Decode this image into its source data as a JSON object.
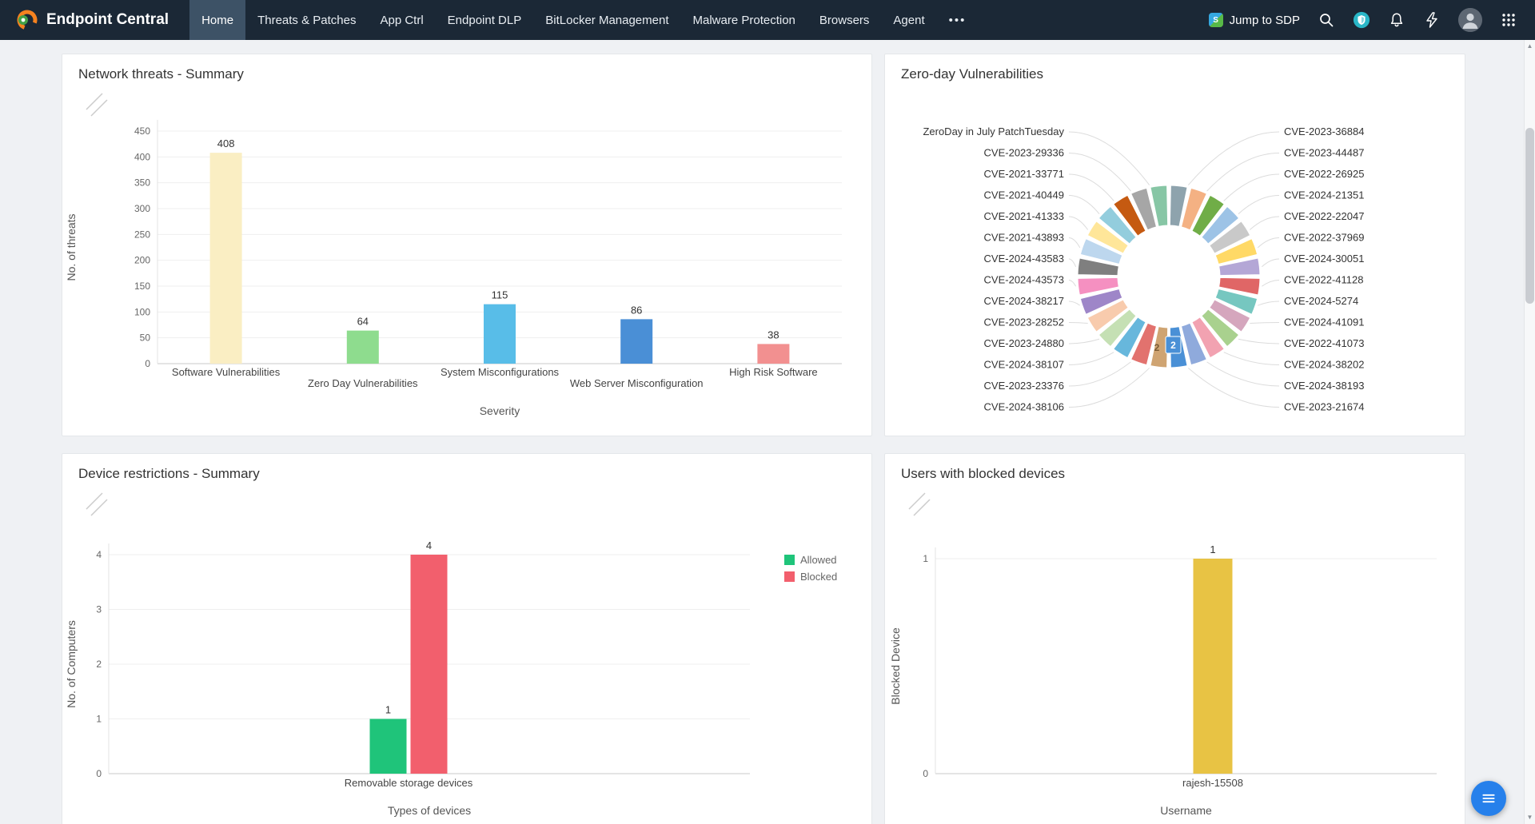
{
  "nav": {
    "brand": "Endpoint Central",
    "items": [
      {
        "label": "Home",
        "active": true
      },
      {
        "label": "Threats & Patches"
      },
      {
        "label": "App Ctrl"
      },
      {
        "label": "Endpoint DLP"
      },
      {
        "label": "BitLocker Management"
      },
      {
        "label": "Malware Protection"
      },
      {
        "label": "Browsers"
      },
      {
        "label": "Agent"
      }
    ],
    "more_label": "•••",
    "jump_label": "Jump to SDP",
    "sdp_logo_text": "S",
    "icons": [
      "search-icon",
      "security-shield-icon",
      "notification-bell-icon",
      "flash-icon",
      "avatar",
      "apps-grid-icon"
    ]
  },
  "colors": {
    "nav_bg": "#1b2836",
    "nav_active": "#3d5266",
    "brand_orange": "#f5821f",
    "brand_green": "#43a047",
    "fab_blue": "#2680eb",
    "shield_teal": "#2ab7c8"
  },
  "chart_data": [
    {
      "type": "bar",
      "title": "Network threats - Summary",
      "categories": [
        "Software Vulnerabilities",
        "Zero Day Vulnerabilities",
        "System Misconfigurations",
        "Web Server Misconfiguration",
        "High Risk Software"
      ],
      "values": [
        408,
        64,
        115,
        86,
        38
      ],
      "colors": [
        "#faeec3",
        "#8edc8e",
        "#58bde8",
        "#4a8fd6",
        "#f29090"
      ],
      "xlabel": "Severity",
      "ylabel": "No. of threats",
      "ylim": [
        0,
        450
      ],
      "ytick_step": 50,
      "grid": true,
      "legend_position": "none"
    },
    {
      "type": "donut",
      "title": "Zero-day Vulnerabilities",
      "labels_left": [
        "ZeroDay in July PatchTuesday",
        "CVE-2023-29336",
        "CVE-2021-33771",
        "CVE-2021-40449",
        "CVE-2021-41333",
        "CVE-2021-43893",
        "CVE-2024-43583",
        "CVE-2024-43573",
        "CVE-2024-38217",
        "CVE-2023-28252",
        "CVE-2023-24880",
        "CVE-2024-38107",
        "CVE-2023-23376",
        "CVE-2024-38106"
      ],
      "labels_right": [
        "CVE-2023-36884",
        "CVE-2023-44487",
        "CVE-2022-26925",
        "CVE-2024-21351",
        "CVE-2022-22047",
        "CVE-2022-37969",
        "CVE-2024-30051",
        "CVE-2022-41128",
        "CVE-2024-5274",
        "CVE-2024-41091",
        "CVE-2022-41073",
        "CVE-2024-38202",
        "CVE-2024-38193",
        "CVE-2023-21674"
      ],
      "segment_value": 1,
      "callouts": [
        {
          "text": "2",
          "highlight": false
        },
        {
          "text": "2",
          "highlight": true
        }
      ],
      "palette": [
        "#8ea3ad",
        "#f4b183",
        "#70ad47",
        "#9dc3e6",
        "#c9c9c9",
        "#ffd966",
        "#b4a7d6",
        "#e06666",
        "#76c7c0",
        "#d5a6bd",
        "#a9d18e",
        "#f2a2b1",
        "#8faadc",
        "#4a90d6",
        "#cfa472",
        "#e2726e",
        "#67b7dc",
        "#c5e0b4",
        "#f8cbad",
        "#9e86c8",
        "#f590c1",
        "#7f7f7f",
        "#bdd7ee",
        "#ffe699",
        "#93cddd",
        "#c55a11",
        "#a6a6a6",
        "#87c6a5"
      ]
    },
    {
      "type": "grouped_bar",
      "title": "Device restrictions - Summary",
      "categories": [
        "Removable storage devices"
      ],
      "series": [
        {
          "name": "Allowed",
          "values": [
            1
          ],
          "color": "#1fc47a"
        },
        {
          "name": "Blocked",
          "values": [
            4
          ],
          "color": "#f25f6d"
        }
      ],
      "xlabel": "Types of devices",
      "ylabel": "No. of Computers",
      "ylim": [
        0,
        4
      ],
      "ytick_step": 1,
      "grid": true,
      "legend_position": "right"
    },
    {
      "type": "bar",
      "title": "Users with blocked devices",
      "categories": [
        "rajesh-15508"
      ],
      "values": [
        1
      ],
      "colors": [
        "#e8c344"
      ],
      "xlabel": "Username",
      "ylabel": "Blocked Device",
      "ylim": [
        0,
        1
      ],
      "ytick_step": 1,
      "grid": true,
      "legend_position": "none"
    }
  ]
}
